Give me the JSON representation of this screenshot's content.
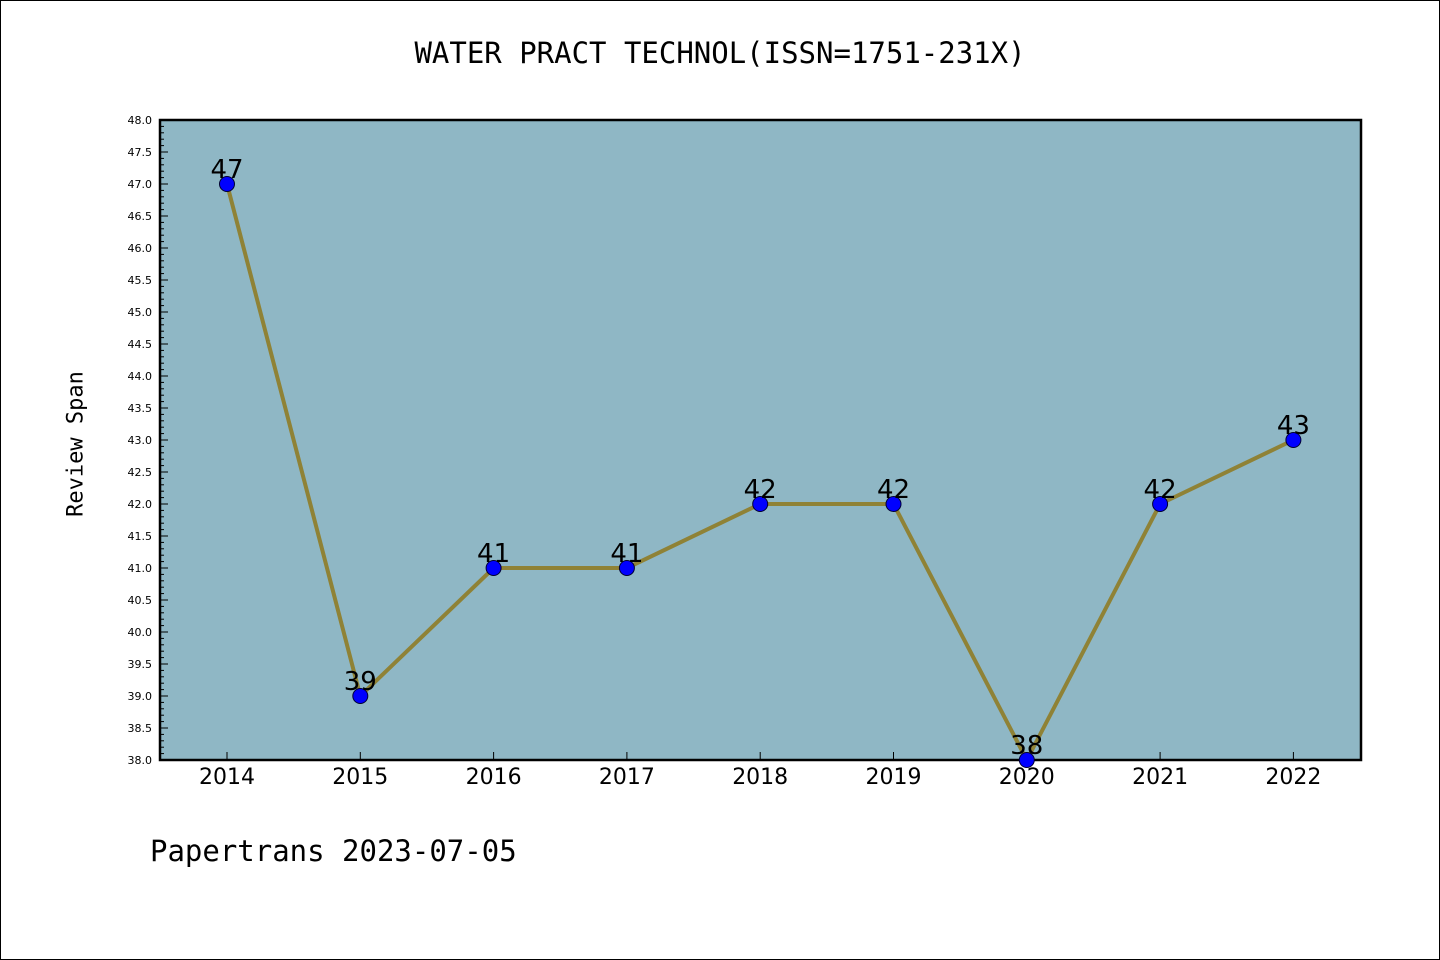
{
  "page": {
    "title": "WATER PRACT TECHNOL(ISSN=1751-231X)",
    "footer": "Papertrans 2023-07-05"
  },
  "chart_data": {
    "type": "line",
    "title": "WATER PRACT TECHNOL(ISSN=1751-231X)",
    "xlabel": "",
    "ylabel": "Review Span",
    "categories": [
      "2014",
      "2015",
      "2016",
      "2017",
      "2018",
      "2019",
      "2020",
      "2021",
      "2022"
    ],
    "series": [
      {
        "values": [
          47,
          39,
          41,
          41,
          42,
          42,
          38,
          42,
          43
        ]
      }
    ],
    "data_labels": [
      "47",
      "39",
      "41",
      "41",
      "42",
      "42",
      "38",
      "42",
      "43"
    ],
    "ylim": [
      38.0,
      48.0
    ],
    "yticks": [
      "38.0",
      "38.5",
      "39.0",
      "39.5",
      "40.0",
      "40.5",
      "41.0",
      "41.5",
      "42.0",
      "42.5",
      "43.0",
      "43.5",
      "44.0",
      "44.5",
      "45.0",
      "45.5",
      "46.0",
      "46.5",
      "47.0",
      "47.5",
      "48.0"
    ],
    "grid": false,
    "legend": "none",
    "colors": {
      "plot_background": "#8fb7c5",
      "line": "#8f8236",
      "marker": "#0000ff",
      "marker_edge": "#000033",
      "axes": "#000000"
    }
  }
}
